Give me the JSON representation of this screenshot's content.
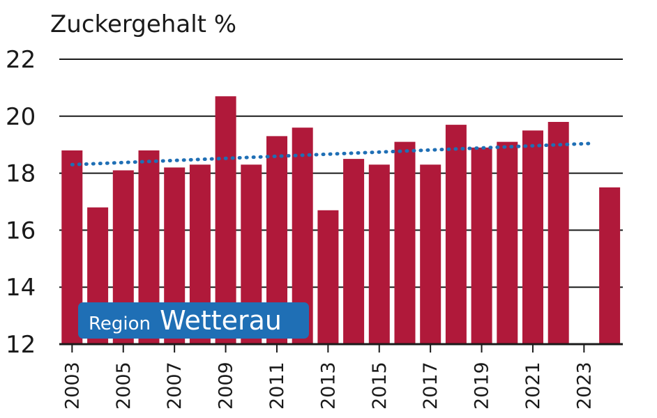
{
  "chart_data": {
    "type": "bar",
    "title": "Zuckergehalt %",
    "xlabel": "",
    "ylabel": "",
    "ylim": [
      12,
      22
    ],
    "yticks": [
      12,
      14,
      16,
      18,
      20,
      22
    ],
    "x_tick_labels": [
      "2003",
      "2005",
      "2007",
      "2009",
      "2011",
      "2013",
      "2015",
      "2017",
      "2019",
      "2021",
      "2023"
    ],
    "categories": [
      "2003",
      "2004",
      "2005",
      "2006",
      "2007",
      "2008",
      "2009",
      "2010",
      "2011",
      "2012",
      "2013",
      "2014",
      "2015",
      "2016",
      "2017",
      "2018",
      "2019",
      "2020",
      "2021",
      "2022",
      "2023",
      "2024"
    ],
    "values": [
      18.8,
      16.8,
      18.1,
      18.8,
      18.2,
      18.3,
      20.7,
      18.3,
      19.3,
      19.6,
      16.7,
      18.5,
      18.3,
      19.1,
      18.3,
      19.7,
      18.9,
      19.1,
      19.5,
      19.8,
      null,
      17.5
    ],
    "trendline": {
      "style": "dotted",
      "start": 18.3,
      "end": 19.05
    },
    "grid": true,
    "bar_color": "#b0193a",
    "trend_color": "#1f6fb5",
    "annotation": {
      "small": "Region",
      "big": "Wetterau",
      "background": "#1f6fb5"
    }
  }
}
